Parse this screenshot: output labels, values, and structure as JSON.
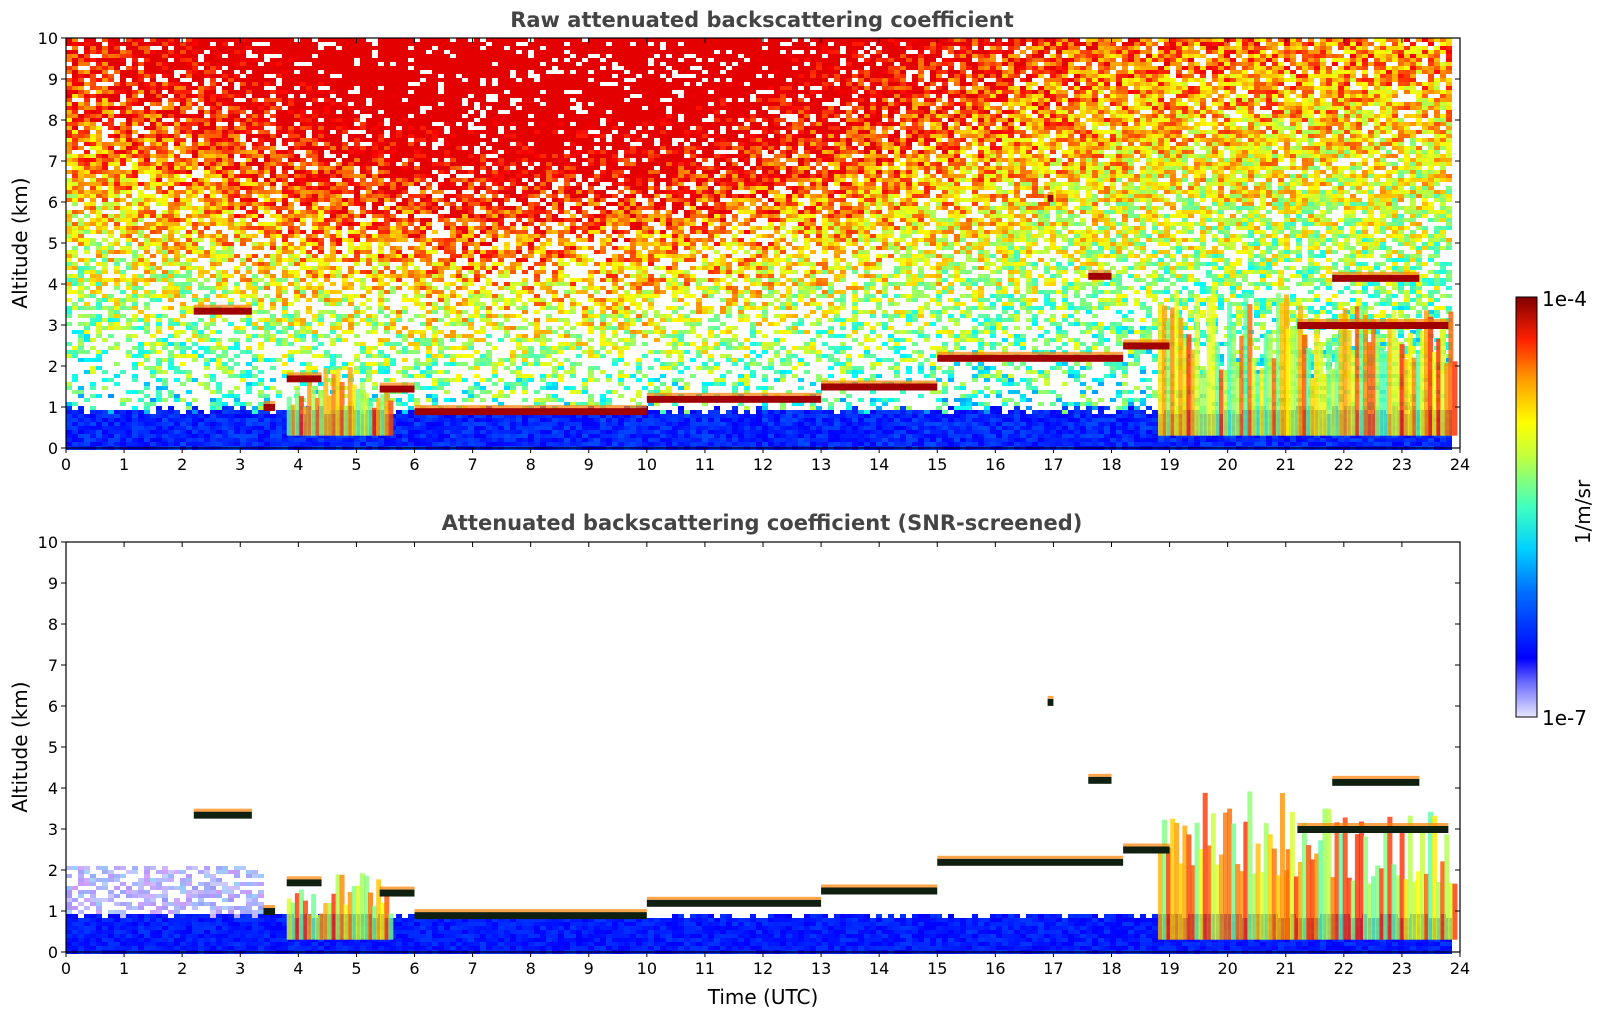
{
  "chart_data": [
    {
      "type": "heatmap",
      "title": "Raw attenuated backscattering coefficient",
      "xlabel": "",
      "ylabel": "Altitude (km)",
      "xlim": [
        0,
        24
      ],
      "ylim": [
        0,
        10
      ],
      "xticks": [
        "0",
        "1",
        "2",
        "3",
        "4",
        "5",
        "6",
        "7",
        "8",
        "9",
        "10",
        "11",
        "12",
        "13",
        "14",
        "15",
        "16",
        "17",
        "18",
        "19",
        "20",
        "21",
        "22",
        "23",
        "24"
      ],
      "yticks": [
        "0",
        "1",
        "2",
        "3",
        "4",
        "5",
        "6",
        "7",
        "8",
        "9",
        "10"
      ],
      "screened": false,
      "cloud_layers": [
        {
          "t_start": 2.2,
          "t_end": 3.2,
          "alt": 3.35
        },
        {
          "t_start": 3.4,
          "t_end": 3.6,
          "alt": 1.0
        },
        {
          "t_start": 3.8,
          "t_end": 4.4,
          "alt": 1.7
        },
        {
          "t_start": 5.4,
          "t_end": 6.0,
          "alt": 1.45
        },
        {
          "t_start": 6.0,
          "t_end": 10.0,
          "alt": 0.9
        },
        {
          "t_start": 10.0,
          "t_end": 13.0,
          "alt": 1.2
        },
        {
          "t_start": 13.0,
          "t_end": 15.0,
          "alt": 1.5
        },
        {
          "t_start": 15.0,
          "t_end": 18.2,
          "alt": 2.2
        },
        {
          "t_start": 18.2,
          "t_end": 19.0,
          "alt": 2.5
        },
        {
          "t_start": 17.6,
          "t_end": 18.0,
          "alt": 4.2
        },
        {
          "t_start": 21.8,
          "t_end": 23.3,
          "alt": 4.15
        },
        {
          "t_start": 21.2,
          "t_end": 23.8,
          "alt": 3.0
        },
        {
          "t_start": 16.9,
          "t_end": 17.0,
          "alt": 6.1
        }
      ],
      "aerosol_layer_top_km": 0.85,
      "convective_plumes": [
        {
          "t_start": 3.8,
          "t_end": 5.6,
          "top": 1.8
        },
        {
          "t_start": 18.8,
          "t_end": 21.0,
          "top": 3.6
        },
        {
          "t_start": 21.0,
          "t_end": 23.9,
          "top": 3.3
        }
      ]
    },
    {
      "type": "heatmap",
      "title": "Attenuated backscattering coefficient (SNR-screened)",
      "xlabel": "Time (UTC)",
      "ylabel": "Altitude (km)",
      "xlim": [
        0,
        24
      ],
      "ylim": [
        0,
        10
      ],
      "xticks": [
        "0",
        "1",
        "2",
        "3",
        "4",
        "5",
        "6",
        "7",
        "8",
        "9",
        "10",
        "11",
        "12",
        "13",
        "14",
        "15",
        "16",
        "17",
        "18",
        "19",
        "20",
        "21",
        "22",
        "23",
        "24"
      ],
      "yticks": [
        "0",
        "1",
        "2",
        "3",
        "4",
        "5",
        "6",
        "7",
        "8",
        "9",
        "10"
      ],
      "screened": true
    }
  ],
  "colorbar": {
    "label": "1/m/sr",
    "max_label": "1e-4",
    "min_label": "1e-7",
    "vmin": 1e-07,
    "vmax": 0.0001,
    "scale": "log",
    "colormap": "jet",
    "low_color": "#0000ff",
    "high_color": "#800000"
  }
}
